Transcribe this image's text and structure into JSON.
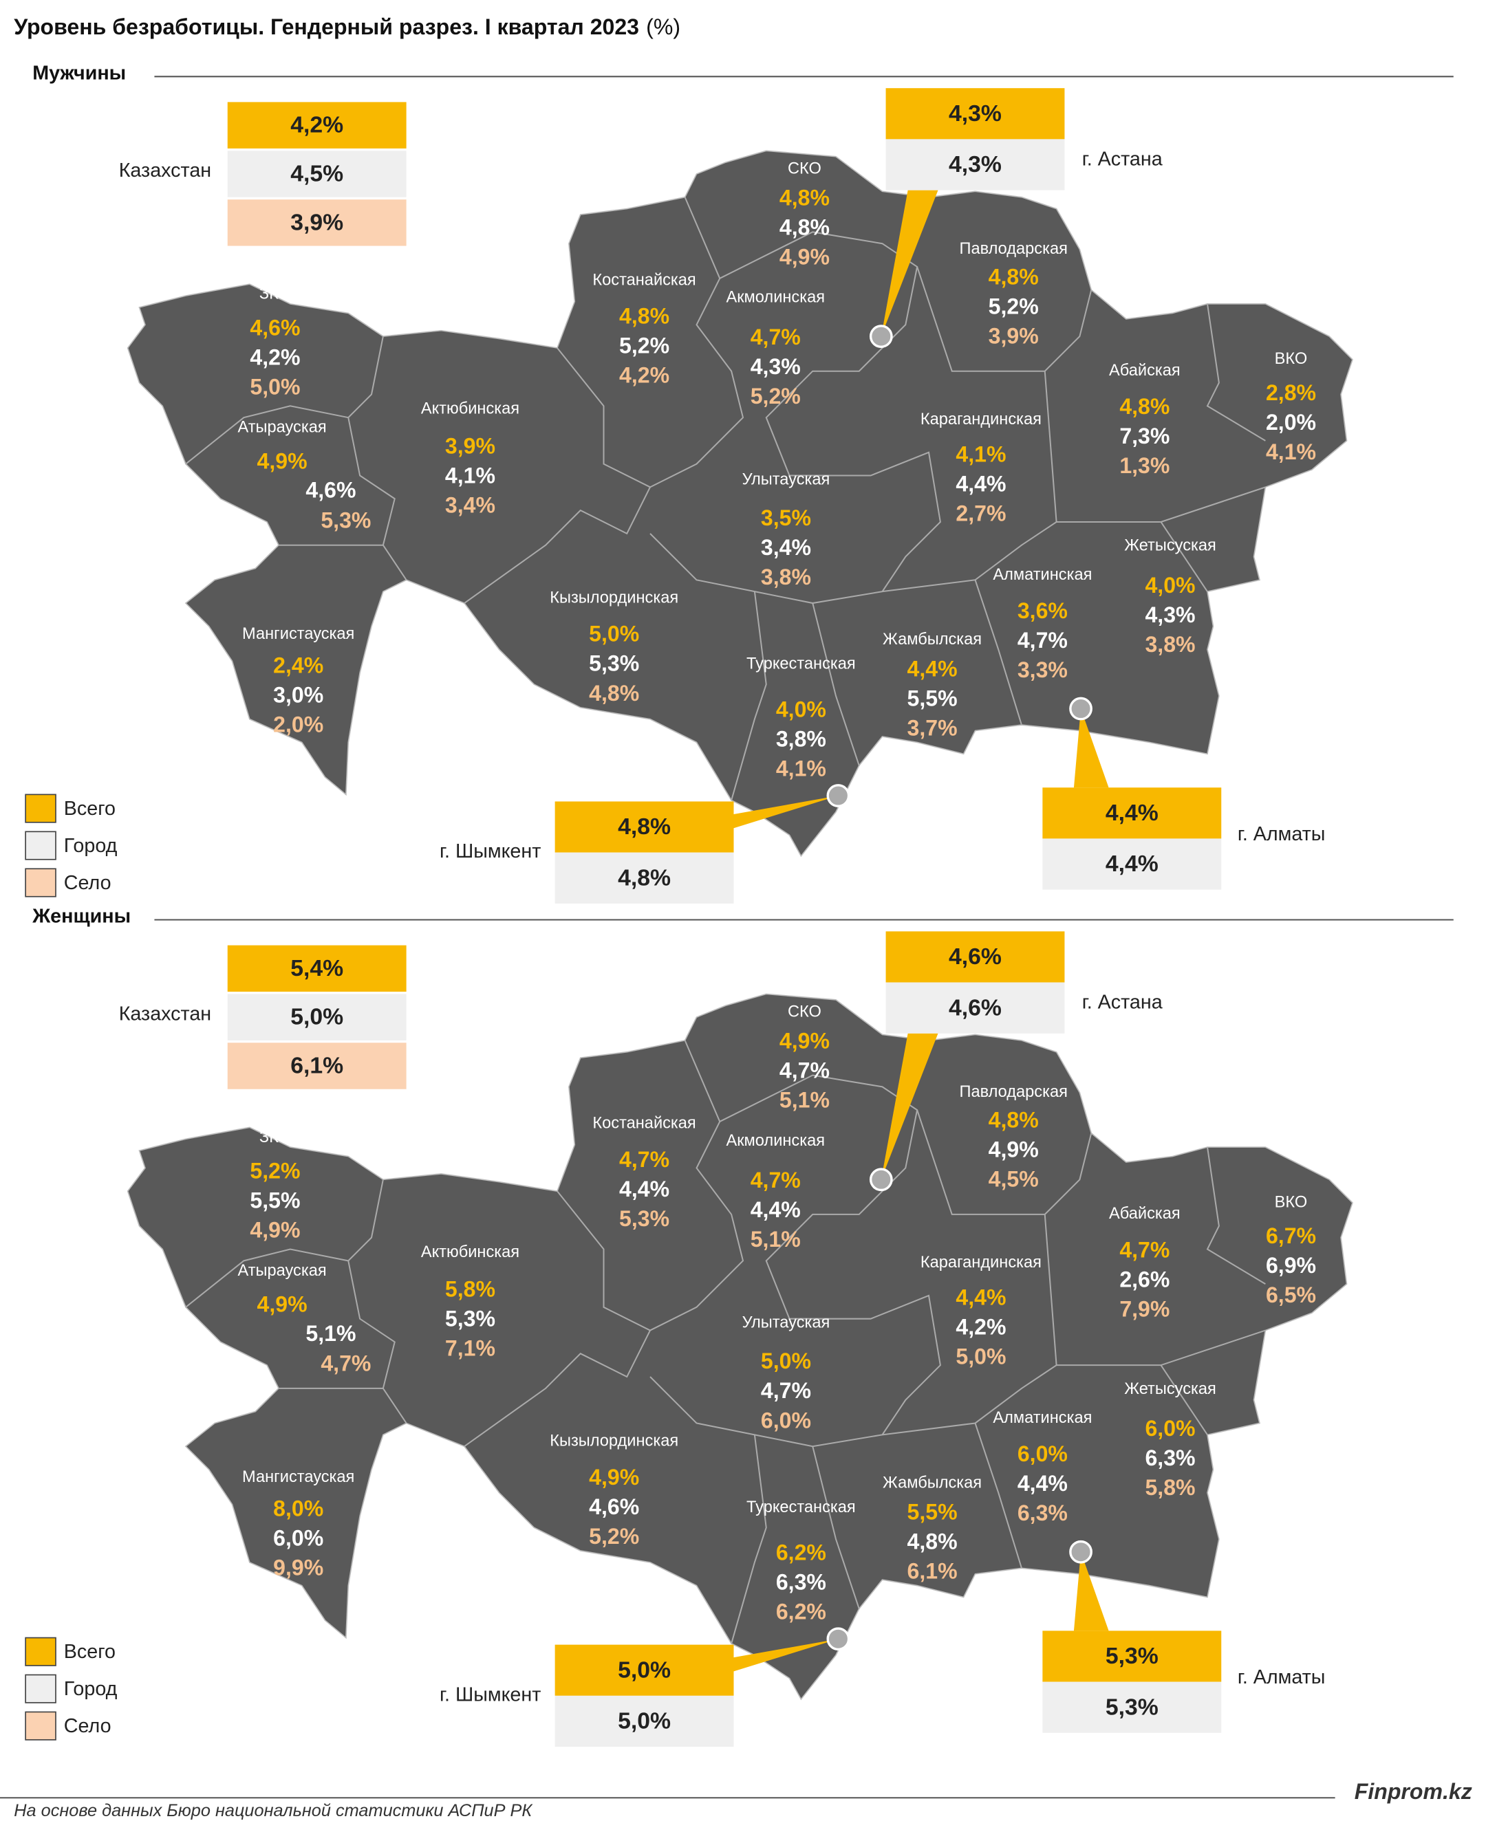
{
  "title": "Уровень безработицы. Гендерный разрез. I квартал 2023",
  "title_unit": "(%)",
  "legend": [
    "Всего",
    "Город",
    "Село"
  ],
  "country": "Казахстан",
  "cities": [
    "г. Астана",
    "г. Шымкент",
    "г. Алматы"
  ],
  "regions": [
    "СКО",
    "Костанайская",
    "Акмолинская",
    "Павлодарская",
    "ЗКО",
    "Атырауская",
    "Актюбинская",
    "Абайская",
    "ВКО",
    "Карагандинская",
    "Улытауская",
    "Кызылординская",
    "Туркестанская",
    "Жамбылская",
    "Алматинская",
    "Жетысуская",
    "Мангистауская"
  ],
  "panels": [
    {
      "label": "Мужчины",
      "country": [
        "4,2%",
        "4,5%",
        "3,9%"
      ],
      "cities": [
        [
          "4,3%",
          "4,3%"
        ],
        [
          "4,8%",
          "4,8%"
        ],
        [
          "4,4%",
          "4,4%"
        ]
      ],
      "regions": [
        [
          "4,8%",
          "4,8%",
          "4,9%"
        ],
        [
          "4,8%",
          "5,2%",
          "4,2%"
        ],
        [
          "4,7%",
          "4,3%",
          "5,2%"
        ],
        [
          "4,8%",
          "5,2%",
          "3,9%"
        ],
        [
          "4,6%",
          "4,2%",
          "5,0%"
        ],
        [
          "4,9%",
          "4,6%",
          "5,3%"
        ],
        [
          "3,9%",
          "4,1%",
          "3,4%"
        ],
        [
          "4,8%",
          "7,3%",
          "1,3%"
        ],
        [
          "2,8%",
          "2,0%",
          "4,1%"
        ],
        [
          "4,1%",
          "4,4%",
          "2,7%"
        ],
        [
          "3,5%",
          "3,4%",
          "3,8%"
        ],
        [
          "5,0%",
          "5,3%",
          "4,8%"
        ],
        [
          "4,0%",
          "3,8%",
          "4,1%"
        ],
        [
          "4,4%",
          "5,5%",
          "3,7%"
        ],
        [
          "3,6%",
          "4,7%",
          "3,3%"
        ],
        [
          "4,0%",
          "4,3%",
          "3,8%"
        ],
        [
          "2,4%",
          "3,0%",
          "2,0%"
        ]
      ]
    },
    {
      "label": "Женщины",
      "country": [
        "5,4%",
        "5,0%",
        "6,1%"
      ],
      "cities": [
        [
          "4,6%",
          "4,6%"
        ],
        [
          "5,0%",
          "5,0%"
        ],
        [
          "5,3%",
          "5,3%"
        ]
      ],
      "regions": [
        [
          "4,9%",
          "4,7%",
          "5,1%"
        ],
        [
          "4,7%",
          "4,4%",
          "5,3%"
        ],
        [
          "4,7%",
          "4,4%",
          "5,1%"
        ],
        [
          "4,8%",
          "4,9%",
          "4,5%"
        ],
        [
          "5,2%",
          "5,5%",
          "4,9%"
        ],
        [
          "4,9%",
          "5,1%",
          "4,7%"
        ],
        [
          "5,8%",
          "5,3%",
          "7,1%"
        ],
        [
          "4,7%",
          "2,6%",
          "7,9%"
        ],
        [
          "6,7%",
          "6,9%",
          "6,5%"
        ],
        [
          "4,4%",
          "4,2%",
          "5,0%"
        ],
        [
          "5,0%",
          "4,7%",
          "6,0%"
        ],
        [
          "4,9%",
          "4,6%",
          "5,2%"
        ],
        [
          "6,2%",
          "6,3%",
          "6,2%"
        ],
        [
          "5,5%",
          "4,8%",
          "6,1%"
        ],
        [
          "6,0%",
          "4,4%",
          "6,3%"
        ],
        [
          "6,0%",
          "6,3%",
          "5,8%"
        ],
        [
          "8,0%",
          "6,0%",
          "9,9%"
        ]
      ]
    }
  ],
  "source": "На основе данных Бюро национальной статистики АСПиР РК",
  "brand": "Finprom.kz"
}
